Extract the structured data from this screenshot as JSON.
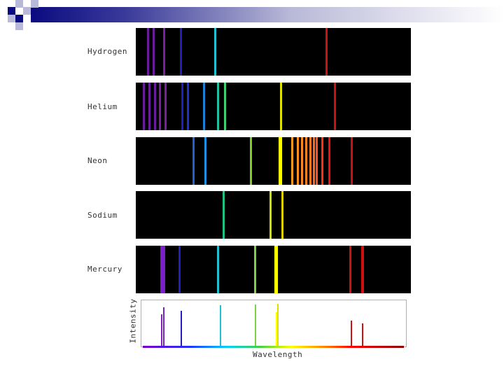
{
  "spectra": [
    {
      "name": "Hydrogen",
      "lines": [
        {
          "wl": 0.04,
          "color": "#6a1b9a",
          "w": 3
        },
        {
          "wl": 0.06,
          "color": "#6a1b9a",
          "w": 3
        },
        {
          "wl": 0.1,
          "color": "#7b1fa2",
          "w": 3
        },
        {
          "wl": 0.16,
          "color": "#2020c0",
          "w": 3
        },
        {
          "wl": 0.285,
          "color": "#20c0d0",
          "w": 3
        },
        {
          "wl": 0.69,
          "color": "#d01010",
          "w": 3
        }
      ]
    },
    {
      "name": "Helium",
      "lines": [
        {
          "wl": 0.025,
          "color": "#6a1b9a",
          "w": 3
        },
        {
          "wl": 0.045,
          "color": "#6a1b9a",
          "w": 3
        },
        {
          "wl": 0.065,
          "color": "#6a1b9a",
          "w": 3
        },
        {
          "wl": 0.085,
          "color": "#7b1fa2",
          "w": 3
        },
        {
          "wl": 0.105,
          "color": "#7b1fa2",
          "w": 3
        },
        {
          "wl": 0.165,
          "color": "#2020c0",
          "w": 3
        },
        {
          "wl": 0.185,
          "color": "#2030d0",
          "w": 3
        },
        {
          "wl": 0.245,
          "color": "#2080d0",
          "w": 3
        },
        {
          "wl": 0.295,
          "color": "#20c0a0",
          "w": 3
        },
        {
          "wl": 0.32,
          "color": "#40d070",
          "w": 3
        },
        {
          "wl": 0.525,
          "color": "#e0e000",
          "w": 3
        },
        {
          "wl": 0.72,
          "color": "#d01010",
          "w": 3
        }
      ]
    },
    {
      "name": "Neon",
      "lines": [
        {
          "wl": 0.205,
          "color": "#2060d0",
          "w": 3
        },
        {
          "wl": 0.25,
          "color": "#2090e0",
          "w": 3
        },
        {
          "wl": 0.415,
          "color": "#80d020",
          "w": 3
        },
        {
          "wl": 0.52,
          "color": "#ffff00",
          "w": 5
        },
        {
          "wl": 0.565,
          "color": "#ff9a20",
          "w": 3
        },
        {
          "wl": 0.585,
          "color": "#ff9020",
          "w": 3
        },
        {
          "wl": 0.6,
          "color": "#ff8a20",
          "w": 3
        },
        {
          "wl": 0.615,
          "color": "#ff8020",
          "w": 3
        },
        {
          "wl": 0.63,
          "color": "#ff7a20",
          "w": 3
        },
        {
          "wl": 0.645,
          "color": "#ff6a20",
          "w": 3
        },
        {
          "wl": 0.655,
          "color": "#ff5020",
          "w": 3
        },
        {
          "wl": 0.675,
          "color": "#ff3010",
          "w": 3
        },
        {
          "wl": 0.7,
          "color": "#ee1010",
          "w": 3
        },
        {
          "wl": 0.78,
          "color": "#d01010",
          "w": 3
        }
      ]
    },
    {
      "name": "Sodium",
      "lines": [
        {
          "wl": 0.315,
          "color": "#20c080",
          "w": 3
        },
        {
          "wl": 0.485,
          "color": "#d0e000",
          "w": 3
        },
        {
          "wl": 0.53,
          "color": "#e0d000",
          "w": 3
        }
      ]
    },
    {
      "name": "Mercury",
      "lines": [
        {
          "wl": 0.09,
          "color": "#7b1fc8",
          "w": 7
        },
        {
          "wl": 0.155,
          "color": "#2020c0",
          "w": 3
        },
        {
          "wl": 0.295,
          "color": "#20c0d0",
          "w": 3
        },
        {
          "wl": 0.43,
          "color": "#80d040",
          "w": 3
        },
        {
          "wl": 0.505,
          "color": "#ffff00",
          "w": 5
        },
        {
          "wl": 0.775,
          "color": "#d01010",
          "w": 3
        },
        {
          "wl": 0.82,
          "color": "#d01010",
          "w": 4
        }
      ]
    }
  ],
  "intensity_plot": {
    "xlabel": "Wavelength",
    "ylabel": "Intensity",
    "peaks": [
      {
        "wl": 0.07,
        "intensity": 0.72,
        "color": "#8a20c0"
      },
      {
        "wl": 0.078,
        "intensity": 0.88,
        "color": "#7a20c8"
      },
      {
        "wl": 0.145,
        "intensity": 0.8,
        "color": "#2020c0"
      },
      {
        "wl": 0.295,
        "intensity": 0.93,
        "color": "#20c0d0"
      },
      {
        "wl": 0.43,
        "intensity": 0.95,
        "color": "#80d040"
      },
      {
        "wl": 0.51,
        "intensity": 0.78,
        "color": "#ffff00"
      },
      {
        "wl": 0.515,
        "intensity": 0.97,
        "color": "#e0e000"
      },
      {
        "wl": 0.795,
        "intensity": 0.58,
        "color": "#d01010"
      },
      {
        "wl": 0.84,
        "intensity": 0.52,
        "color": "#d01010"
      }
    ]
  }
}
